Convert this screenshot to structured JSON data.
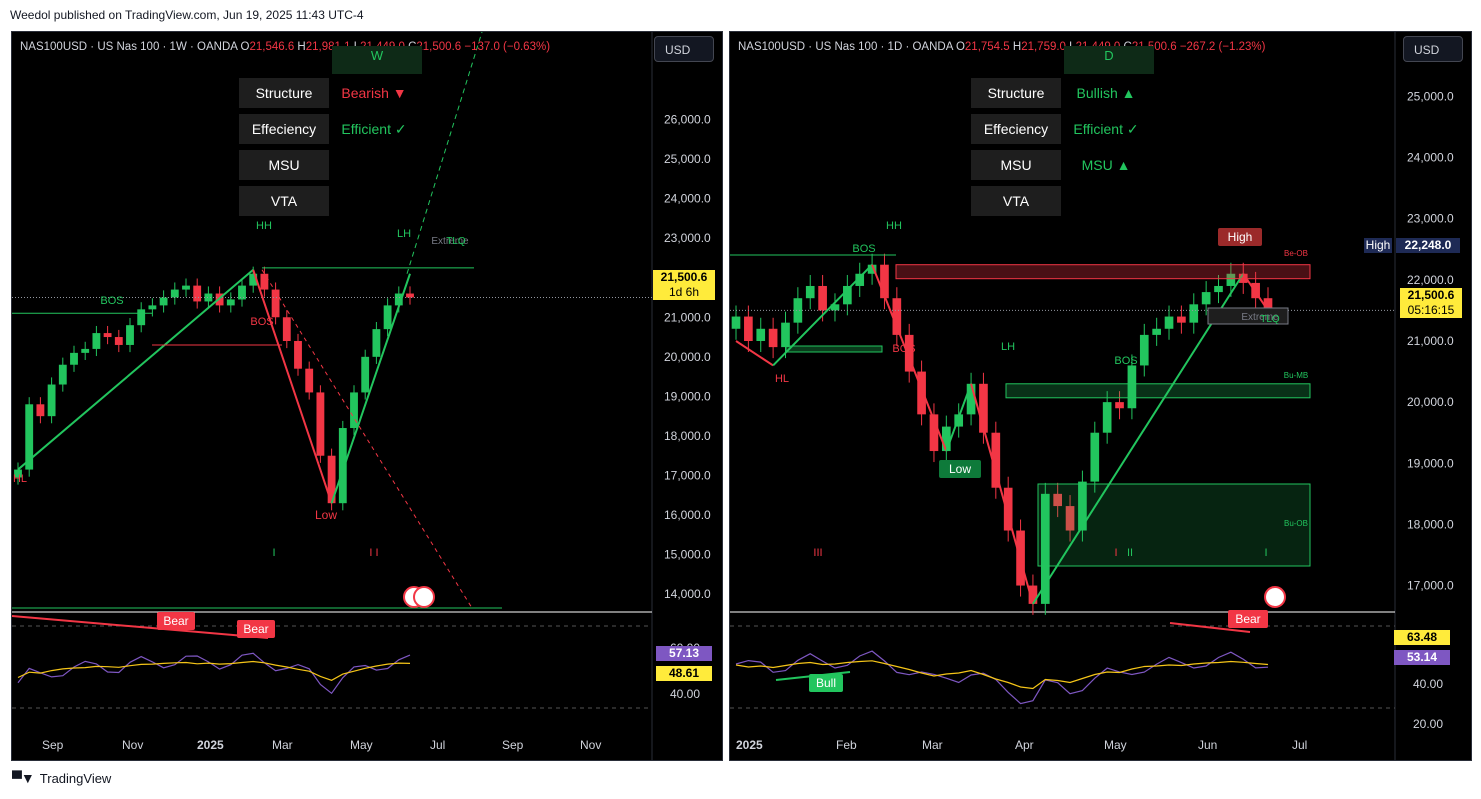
{
  "published": "Weedol published on TradingView.com, Jun 19, 2025 11:43 UTC-4",
  "footer": "TradingView",
  "left": {
    "symbol": "NAS100USD · US Nas 100 · 1W · OANDA",
    "ohlc": {
      "o": "21,546.6",
      "h": "21,981.1",
      "l": "21,449.0",
      "c": "21,500.6",
      "chg": "−137.0 (−0.63%)"
    },
    "currency": "USD",
    "tf_badge": "W",
    "table": [
      {
        "key": "Structure",
        "value": "Bearish ▼",
        "tone": "bear"
      },
      {
        "key": "Effeciency",
        "value": "Efficient ✓",
        "tone": "bull"
      },
      {
        "key": "MSU",
        "value": "",
        "tone": "bull"
      },
      {
        "key": "VTA",
        "value": "",
        "tone": "bull"
      }
    ],
    "last_price": "21,500.6",
    "countdown": "1d 6h",
    "rsi_values": [
      "57.13",
      "48.61"
    ],
    "rsi_axis": [
      "60.00",
      "40.00"
    ],
    "labels": {
      "hh": "HH",
      "lh": "LH",
      "hl": "HL",
      "low": "Low",
      "bos1": "BOS",
      "bos2": "BOS",
      "extreme": "Extreme",
      "tlq": "TLQ",
      "roman1": "I",
      "roman2": "I I",
      "bear1": "Bear",
      "bear2": "Bear"
    }
  },
  "right": {
    "symbol": "NAS100USD · US Nas 100 · 1D · OANDA",
    "ohlc": {
      "o": "21,754.5",
      "h": "21,759.0",
      "l": "21,449.0",
      "c": "21,500.6",
      "chg": "−267.2 (−1.23%)"
    },
    "currency": "USD",
    "tf_badge": "D",
    "table": [
      {
        "key": "Structure",
        "value": "Bullish ▲",
        "tone": "bull"
      },
      {
        "key": "Effeciency",
        "value": "Efficient ✓",
        "tone": "bull"
      },
      {
        "key": "MSU",
        "value": "MSU ▲",
        "tone": "bull"
      },
      {
        "key": "VTA",
        "value": "",
        "tone": "bull"
      }
    ],
    "last_price": "21,500.6",
    "countdown": "05:16:15",
    "high_label": "High",
    "high_value": "22,248.0",
    "rsi_values": [
      "63.48",
      "53.14"
    ],
    "rsi_axis": [
      "40.00",
      "20.00"
    ],
    "labels": {
      "hh": "HH",
      "lh": "LH",
      "hl": "HL",
      "low": "Low",
      "high": "High",
      "bos1": "BOS",
      "bos2": "BOS",
      "bos3": "BOS",
      "beob": "Be-OB",
      "bumb": "Bu-MB",
      "buob": "Bu-OB",
      "extreme": "Extreme",
      "tlq": "TLQ",
      "roman1": "III",
      "roman2": "I",
      "roman3": "II",
      "roman4": "I",
      "bear": "Bear",
      "bull": "Bull"
    }
  },
  "chart_data": [
    {
      "type": "line",
      "title": "NAS100USD · US Nas 100 · 1W · OANDA",
      "xlabel": "",
      "ylabel": "",
      "x_ticks": [
        "Sep",
        "Nov",
        "2025",
        "Mar",
        "May",
        "Jul",
        "Sep",
        "Nov"
      ],
      "y_ticks": [
        "26,000.0",
        "25,000.0",
        "24,000.0",
        "23,000.0",
        "22,000.0",
        "21,000.0",
        "20,000.0",
        "19,000.0",
        "18,000.0",
        "17,000.0",
        "16,000.0",
        "15,000.0",
        "14,000.0"
      ],
      "ylim": [
        13600,
        27200
      ],
      "series": [
        {
          "values": [
            17150,
            18800,
            18500,
            19300,
            19800,
            20100,
            20200,
            20600,
            20500,
            20300,
            20800,
            21200,
            21300,
            21500,
            21700,
            21800,
            21400,
            21600,
            21300,
            21450,
            21800,
            22100,
            21700,
            21000,
            20400,
            19700,
            19100,
            17500,
            16300,
            18200,
            19100,
            20000,
            20700,
            21300,
            21600,
            21500
          ]
        }
      ],
      "structure_levels": {
        "HH": 22200,
        "LH": 22100,
        "HL": 17150,
        "Low": 16300
      }
    },
    {
      "type": "line",
      "title": "NAS100USD · US Nas 100 · 1D · OANDA",
      "xlabel": "",
      "ylabel": "",
      "x_ticks": [
        "2025",
        "Feb",
        "Mar",
        "Apr",
        "May",
        "Jun",
        "Jul"
      ],
      "y_ticks": [
        "25,000.0",
        "24,000.0",
        "23,000.0",
        "22,000.0",
        "21,000.0",
        "20,000.0",
        "19,000.0",
        "18,000.0",
        "17,000.0"
      ],
      "ylim": [
        16600,
        25400
      ],
      "series": [
        {
          "values": [
            21400,
            21000,
            21200,
            20900,
            21300,
            21700,
            21900,
            21500,
            21600,
            21900,
            22100,
            22248,
            21700,
            21100,
            20500,
            19800,
            19200,
            19600,
            19800,
            20300,
            19500,
            18600,
            17900,
            17000,
            16700,
            18500,
            18300,
            17900,
            18700,
            19500,
            20000,
            19900,
            20600,
            21100,
            21200,
            21400,
            21300,
            21600,
            21800,
            21900,
            22100,
            21950,
            21700,
            21500
          ]
        }
      ],
      "structure_levels": {
        "HH": 22248,
        "LH": 20300,
        "HL": 20600,
        "Low": 19150,
        "High": 22248
      }
    }
  ]
}
